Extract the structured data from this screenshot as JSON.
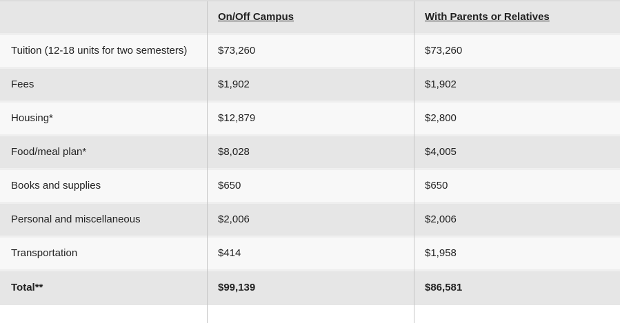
{
  "table": {
    "columns": [
      {
        "label": ""
      },
      {
        "label": "On/Off Campus"
      },
      {
        "label": "With Parents or Relatives"
      }
    ],
    "rows": [
      {
        "label": "Tuition (12-18 units for two semesters)",
        "on_off_campus": "$73,260",
        "with_parents": "$73,260",
        "bold": false
      },
      {
        "label": "Fees",
        "on_off_campus": "$1,902",
        "with_parents": "$1,902",
        "bold": false
      },
      {
        "label": "Housing*",
        "on_off_campus": "$12,879",
        "with_parents": "$2,800",
        "bold": false
      },
      {
        "label": "Food/meal plan*",
        "on_off_campus": "$8,028",
        "with_parents": "$4,005",
        "bold": false
      },
      {
        "label": "Books and supplies",
        "on_off_campus": "$650",
        "with_parents": "$650",
        "bold": false
      },
      {
        "label": "Personal and miscellaneous",
        "on_off_campus": "$2,006",
        "with_parents": "$2,006",
        "bold": false
      },
      {
        "label": "Transportation",
        "on_off_campus": "$414",
        "with_parents": "$1,958",
        "bold": false
      },
      {
        "label": "Total**",
        "on_off_campus": "$99,139",
        "with_parents": "$86,581",
        "bold": true
      }
    ]
  },
  "chart_data": {
    "type": "table",
    "title": "",
    "categories": [
      "Tuition (12-18 units for two semesters)",
      "Fees",
      "Housing*",
      "Food/meal plan*",
      "Books and supplies",
      "Personal and miscellaneous",
      "Transportation",
      "Total**"
    ],
    "series": [
      {
        "name": "On/Off Campus",
        "values": [
          73260,
          1902,
          12879,
          8028,
          650,
          2006,
          414,
          99139
        ]
      },
      {
        "name": "With Parents or Relatives",
        "values": [
          73260,
          1902,
          2800,
          4005,
          650,
          2006,
          1958,
          86581
        ]
      }
    ]
  },
  "colors": {
    "row_grey": "#e6e6e6",
    "row_light": "#f8f8f8",
    "row_separator": "#efefef",
    "column_divider": "#c6c6c6",
    "top_border": "#dcdcdc",
    "text": "#222222"
  }
}
